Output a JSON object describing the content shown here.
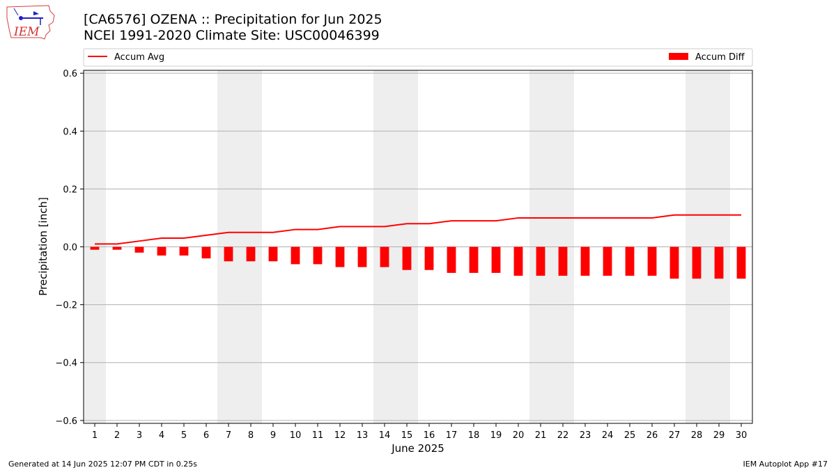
{
  "header": {
    "title_line1": "[CA6576] OZENA :: Precipitation for Jun 2025",
    "title_line2": "NCEI 1991-2020 Climate Site: USC00046399"
  },
  "logo": {
    "text": "IEM",
    "icon": "iem-iowa-logo-icon"
  },
  "footer": {
    "left": "Generated at 14 Jun 2025 12:07 PM CDT in 0.25s",
    "right": "IEM Autoplot App #17"
  },
  "colors": {
    "accum_avg_line": "#ff0000",
    "accum_diff_bar": "#ff0000",
    "weekend_shade": "#eeeeee",
    "grid": "#b0b0b0"
  },
  "chart_data": {
    "type": "bar",
    "xlabel": "June 2025",
    "ylabel": "Precipitation [inch]",
    "ylim": [
      -0.61,
      0.61
    ],
    "yticks": [
      -0.6,
      -0.4,
      -0.2,
      0.0,
      0.2,
      0.4,
      0.6
    ],
    "ytick_labels": [
      "−0.6",
      "−0.4",
      "−0.2",
      "0.0",
      "0.2",
      "0.4",
      "0.6"
    ],
    "grid": "horizontal",
    "legend": "top, above plot",
    "x": [
      1,
      2,
      3,
      4,
      5,
      6,
      7,
      8,
      9,
      10,
      11,
      12,
      13,
      14,
      15,
      16,
      17,
      18,
      19,
      20,
      21,
      22,
      23,
      24,
      25,
      26,
      27,
      28,
      29,
      30
    ],
    "weekend_shaded_days": [
      [
        1,
        1
      ],
      [
        7,
        8
      ],
      [
        14,
        15
      ],
      [
        21,
        22
      ],
      [
        28,
        29
      ]
    ],
    "series": [
      {
        "name": "Accum Avg",
        "kind": "line",
        "values": [
          0.01,
          0.01,
          0.02,
          0.03,
          0.03,
          0.04,
          0.05,
          0.05,
          0.05,
          0.06,
          0.06,
          0.07,
          0.07,
          0.07,
          0.08,
          0.08,
          0.09,
          0.09,
          0.09,
          0.1,
          0.1,
          0.1,
          0.1,
          0.1,
          0.1,
          0.1,
          0.11,
          0.11,
          0.11,
          0.11
        ]
      },
      {
        "name": "Accum Diff",
        "kind": "bar",
        "values": [
          -0.01,
          -0.01,
          -0.02,
          -0.03,
          -0.03,
          -0.04,
          -0.05,
          -0.05,
          -0.05,
          -0.06,
          -0.06,
          -0.07,
          -0.07,
          -0.07,
          -0.08,
          -0.08,
          -0.09,
          -0.09,
          -0.09,
          -0.1,
          -0.1,
          -0.1,
          -0.1,
          -0.1,
          -0.1,
          -0.1,
          -0.11,
          -0.11,
          -0.11,
          -0.11
        ]
      }
    ]
  }
}
